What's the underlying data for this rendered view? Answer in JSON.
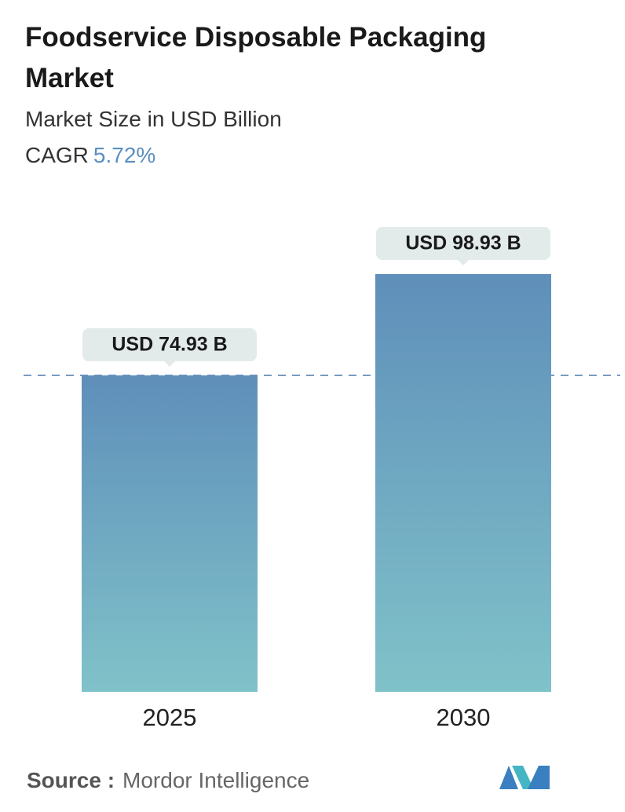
{
  "chart_data": {
    "type": "bar",
    "title": "Foodservice Disposable Packaging Market",
    "subtitle": "Market Size in USD Billion",
    "cagr_label": "CAGR",
    "cagr_value": "5.72%",
    "categories": [
      "2025",
      "2030"
    ],
    "values": [
      74.93,
      98.93
    ],
    "value_labels": [
      "USD 74.93 B",
      "USD 98.93 B"
    ],
    "source_label": "Source :",
    "source": "Mordor Intelligence"
  }
}
